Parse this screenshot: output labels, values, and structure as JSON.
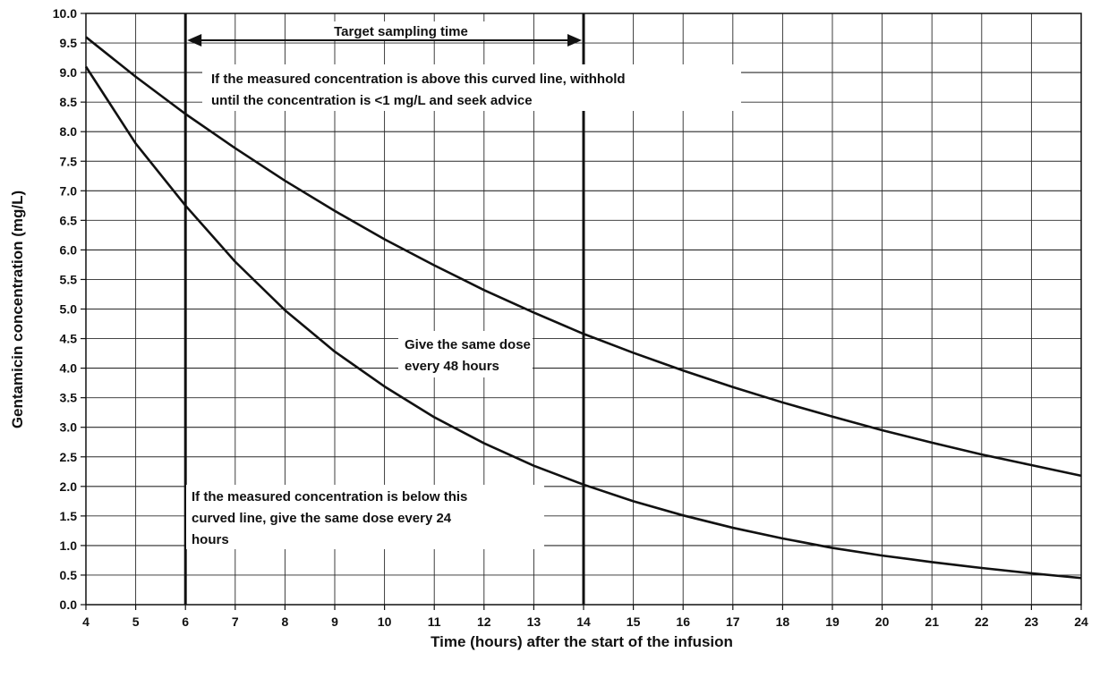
{
  "chart_data": {
    "type": "line",
    "title": "",
    "xlabel": "Time (hours) after the start of the infusion",
    "ylabel": "Gentamicin concentration (mg/L)",
    "xlim": [
      4,
      24
    ],
    "ylim": [
      0,
      10
    ],
    "x_ticks": [
      "4",
      "5",
      "6",
      "7",
      "8",
      "9",
      "10",
      "11",
      "12",
      "13",
      "14",
      "15",
      "16",
      "17",
      "18",
      "19",
      "20",
      "21",
      "22",
      "23",
      "24"
    ],
    "y_ticks": [
      "0.0",
      "0.5",
      "1.0",
      "1.5",
      "2.0",
      "2.5",
      "3.0",
      "3.5",
      "4.0",
      "4.5",
      "5.0",
      "5.5",
      "6.0",
      "6.5",
      "7.0",
      "7.5",
      "8.0",
      "8.5",
      "9.0",
      "9.5",
      "10.0"
    ],
    "grid": true,
    "series": [
      {
        "x": [
          4,
          5,
          6,
          7,
          8,
          9,
          10,
          11,
          12,
          13,
          14,
          15,
          16,
          17,
          18,
          19,
          20,
          21,
          22,
          23,
          24
        ],
        "values": [
          9.6,
          8.93,
          8.3,
          7.72,
          7.17,
          6.66,
          6.18,
          5.74,
          5.32,
          4.94,
          4.58,
          4.26,
          3.96,
          3.68,
          3.42,
          3.18,
          2.95,
          2.74,
          2.54,
          2.36,
          2.18
        ]
      },
      {
        "x": [
          4,
          5,
          6,
          7,
          8,
          9,
          10,
          11,
          12,
          13,
          14,
          15,
          16,
          17,
          18,
          19,
          20,
          21,
          22,
          23,
          24
        ],
        "values": [
          9.1,
          7.8,
          6.75,
          5.8,
          4.98,
          4.28,
          3.69,
          3.17,
          2.73,
          2.35,
          2.03,
          1.75,
          1.51,
          1.3,
          1.12,
          0.96,
          0.83,
          0.72,
          0.62,
          0.53,
          0.45
        ]
      }
    ],
    "vertical_lines": [
      6,
      14
    ],
    "annotations": {
      "target_sampling": "Target sampling time",
      "above_line_1": "If the measured concentration is above this curved line, withhold",
      "above_line_2": "until the concentration is <1 mg/L and seek advice",
      "middle_line_1": "Give the same dose",
      "middle_line_2": "every 48 hours",
      "below_line_1": "If the measured concentration is below this",
      "below_line_2": "curved line, give the same dose every 24",
      "below_line_3": "hours"
    }
  }
}
